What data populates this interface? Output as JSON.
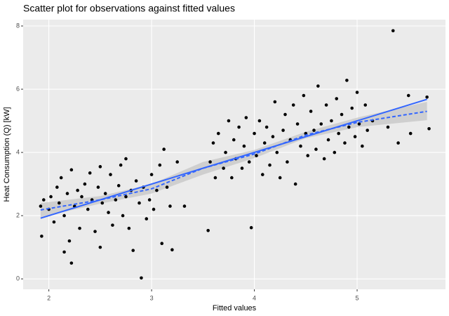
{
  "chart_data": {
    "type": "scatter",
    "title": "Scatter plot for observations against fitted values",
    "x_label": "Fitted values",
    "y_label": "Heat Consumption (Q) [kW]",
    "xlim": [
      1.75,
      5.86
    ],
    "ylim": [
      -0.33,
      8.2
    ],
    "xticks": [
      2,
      3,
      4,
      5
    ],
    "yticks": [
      0,
      2,
      4,
      6,
      8
    ],
    "grid": true,
    "color": "#000000",
    "x": [
      1.92,
      1.93,
      1.95,
      2.0,
      2.02,
      2.05,
      2.08,
      2.1,
      2.12,
      2.15,
      2.15,
      2.18,
      2.2,
      2.22,
      2.22,
      2.25,
      2.28,
      2.3,
      2.32,
      2.35,
      2.38,
      2.4,
      2.42,
      2.45,
      2.48,
      2.5,
      2.5,
      2.52,
      2.55,
      2.58,
      2.6,
      2.62,
      2.65,
      2.68,
      2.7,
      2.72,
      2.75,
      2.75,
      2.78,
      2.8,
      2.82,
      2.85,
      2.88,
      2.9,
      2.92,
      2.95,
      2.98,
      3.0,
      3.02,
      3.05,
      3.08,
      3.1,
      3.12,
      3.15,
      3.18,
      3.2,
      3.25,
      3.32,
      3.55,
      3.57,
      3.6,
      3.62,
      3.65,
      3.7,
      3.72,
      3.75,
      3.78,
      3.8,
      3.82,
      3.85,
      3.88,
      3.9,
      3.92,
      3.95,
      3.97,
      4.0,
      4.02,
      4.05,
      4.08,
      4.1,
      4.12,
      4.15,
      4.18,
      4.2,
      4.22,
      4.25,
      4.28,
      4.3,
      4.32,
      4.35,
      4.38,
      4.4,
      4.42,
      4.45,
      4.48,
      4.5,
      4.52,
      4.55,
      4.58,
      4.6,
      4.62,
      4.65,
      4.68,
      4.7,
      4.72,
      4.75,
      4.78,
      4.8,
      4.82,
      4.85,
      4.88,
      4.9,
      4.92,
      4.95,
      4.98,
      5.0,
      5.02,
      5.05,
      5.08,
      5.1,
      5.15,
      5.3,
      5.35,
      5.4,
      5.5,
      5.52,
      5.68,
      5.7
    ],
    "values": [
      2.3,
      1.35,
      2.5,
      2.2,
      2.6,
      1.8,
      2.9,
      2.4,
      3.2,
      2.0,
      0.85,
      2.7,
      1.2,
      3.45,
      0.5,
      2.3,
      2.8,
      1.6,
      2.6,
      3.0,
      2.2,
      3.35,
      2.5,
      1.5,
      2.9,
      3.55,
      1.0,
      2.4,
      2.7,
      2.1,
      3.3,
      1.7,
      2.5,
      2.95,
      3.6,
      2.0,
      3.8,
      2.6,
      1.6,
      2.8,
      0.9,
      3.1,
      2.4,
      0.03,
      2.9,
      1.9,
      2.5,
      3.3,
      2.2,
      2.8,
      3.6,
      1.12,
      4.1,
      2.9,
      2.3,
      0.92,
      3.7,
      2.3,
      1.53,
      3.7,
      4.3,
      3.2,
      4.6,
      3.5,
      4.0,
      5.0,
      3.2,
      4.4,
      3.8,
      4.8,
      3.5,
      4.2,
      5.1,
      3.7,
      1.62,
      4.6,
      3.9,
      5.0,
      3.3,
      4.3,
      4.8,
      3.6,
      4.5,
      5.6,
      4.0,
      3.2,
      4.7,
      5.2,
      3.7,
      4.4,
      5.5,
      3.0,
      4.9,
      4.2,
      5.8,
      4.6,
      3.9,
      5.3,
      4.7,
      4.1,
      6.1,
      4.9,
      3.8,
      5.5,
      4.4,
      5.0,
      4.0,
      5.7,
      4.6,
      5.2,
      4.3,
      6.28,
      4.8,
      5.4,
      4.5,
      5.9,
      4.9,
      4.2,
      5.5,
      4.7,
      5.0,
      4.8,
      7.85,
      4.3,
      5.8,
      4.6,
      5.75,
      4.75
    ],
    "fit": {
      "color": "#3366ff",
      "x": [
        1.92,
        5.68
      ],
      "values": [
        1.92,
        5.68
      ]
    },
    "smooth": {
      "color": "#3366ff",
      "band_color": "#bdbdbd",
      "x": [
        1.92,
        2.5,
        3.0,
        3.5,
        4.0,
        4.5,
        5.0,
        5.68
      ],
      "values": [
        2.18,
        2.5,
        2.85,
        3.5,
        3.95,
        4.55,
        4.95,
        5.3
      ],
      "lower": [
        1.95,
        2.38,
        2.7,
        3.3,
        3.82,
        4.45,
        4.8,
        5.02
      ],
      "upper": [
        2.4,
        2.62,
        3.0,
        3.7,
        4.08,
        4.65,
        5.1,
        5.6
      ]
    }
  }
}
